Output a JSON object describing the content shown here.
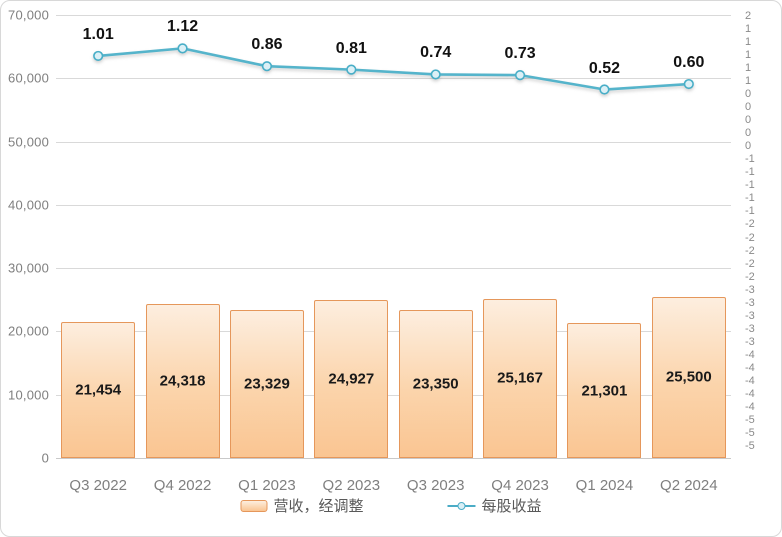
{
  "chart_data": {
    "type": "combo",
    "categories": [
      "Q3 2022",
      "Q4 2022",
      "Q1 2023",
      "Q2 2023",
      "Q3 2023",
      "Q4 2023",
      "Q1 2024",
      "Q2 2024"
    ],
    "series": [
      {
        "name": "营收，经调整",
        "type": "bar",
        "axis": "left",
        "values": [
          21454,
          24318,
          23329,
          24927,
          23350,
          25167,
          21301,
          25500
        ],
        "labels": [
          "21,454",
          "24,318",
          "23,329",
          "24,927",
          "23,350",
          "25,167",
          "21,301",
          "25,500"
        ]
      },
      {
        "name": "每股收益",
        "type": "line",
        "axis": "right",
        "values": [
          1.01,
          1.12,
          0.86,
          0.81,
          0.74,
          0.73,
          0.52,
          0.6
        ],
        "labels": [
          "1.01",
          "1.12",
          "0.86",
          "0.81",
          "0.74",
          "0.73",
          "0.52",
          "0.60"
        ]
      }
    ],
    "left_axis": {
      "min": 0,
      "max": 70000,
      "tick_labels": [
        "70,000",
        "60,000",
        "50,000",
        "40,000",
        "30,000",
        "20,000",
        "10,000",
        "0"
      ]
    },
    "right_axis": {
      "tick_labels": [
        "2",
        "1",
        "1",
        "1",
        "1",
        "1",
        "0",
        "0",
        "0",
        "0",
        "0",
        "-1",
        "-1",
        "-1",
        "-1",
        "-1",
        "-2",
        "-2",
        "-2",
        "-2",
        "-2",
        "-3",
        "-3",
        "-3",
        "-3",
        "-3",
        "-4",
        "-4",
        "-4",
        "-4",
        "-4",
        "-5",
        "-5",
        "-5"
      ]
    },
    "grid": "horizontal",
    "legend_position": "bottom",
    "title": ""
  },
  "colors": {
    "bar_fill_top": "#fdeedf",
    "bar_fill_bottom": "#fac592",
    "bar_border": "#e5975b",
    "line": "#55b4cb",
    "marker_fill": "#dcf0f6",
    "marker_border": "#48aec7",
    "gridline": "#d9d9d9",
    "axis_text": "#7f7f7f",
    "data_label_text": "#1a1a1a",
    "legend_text": "#595959",
    "chart_border": "#d8d8d8"
  }
}
